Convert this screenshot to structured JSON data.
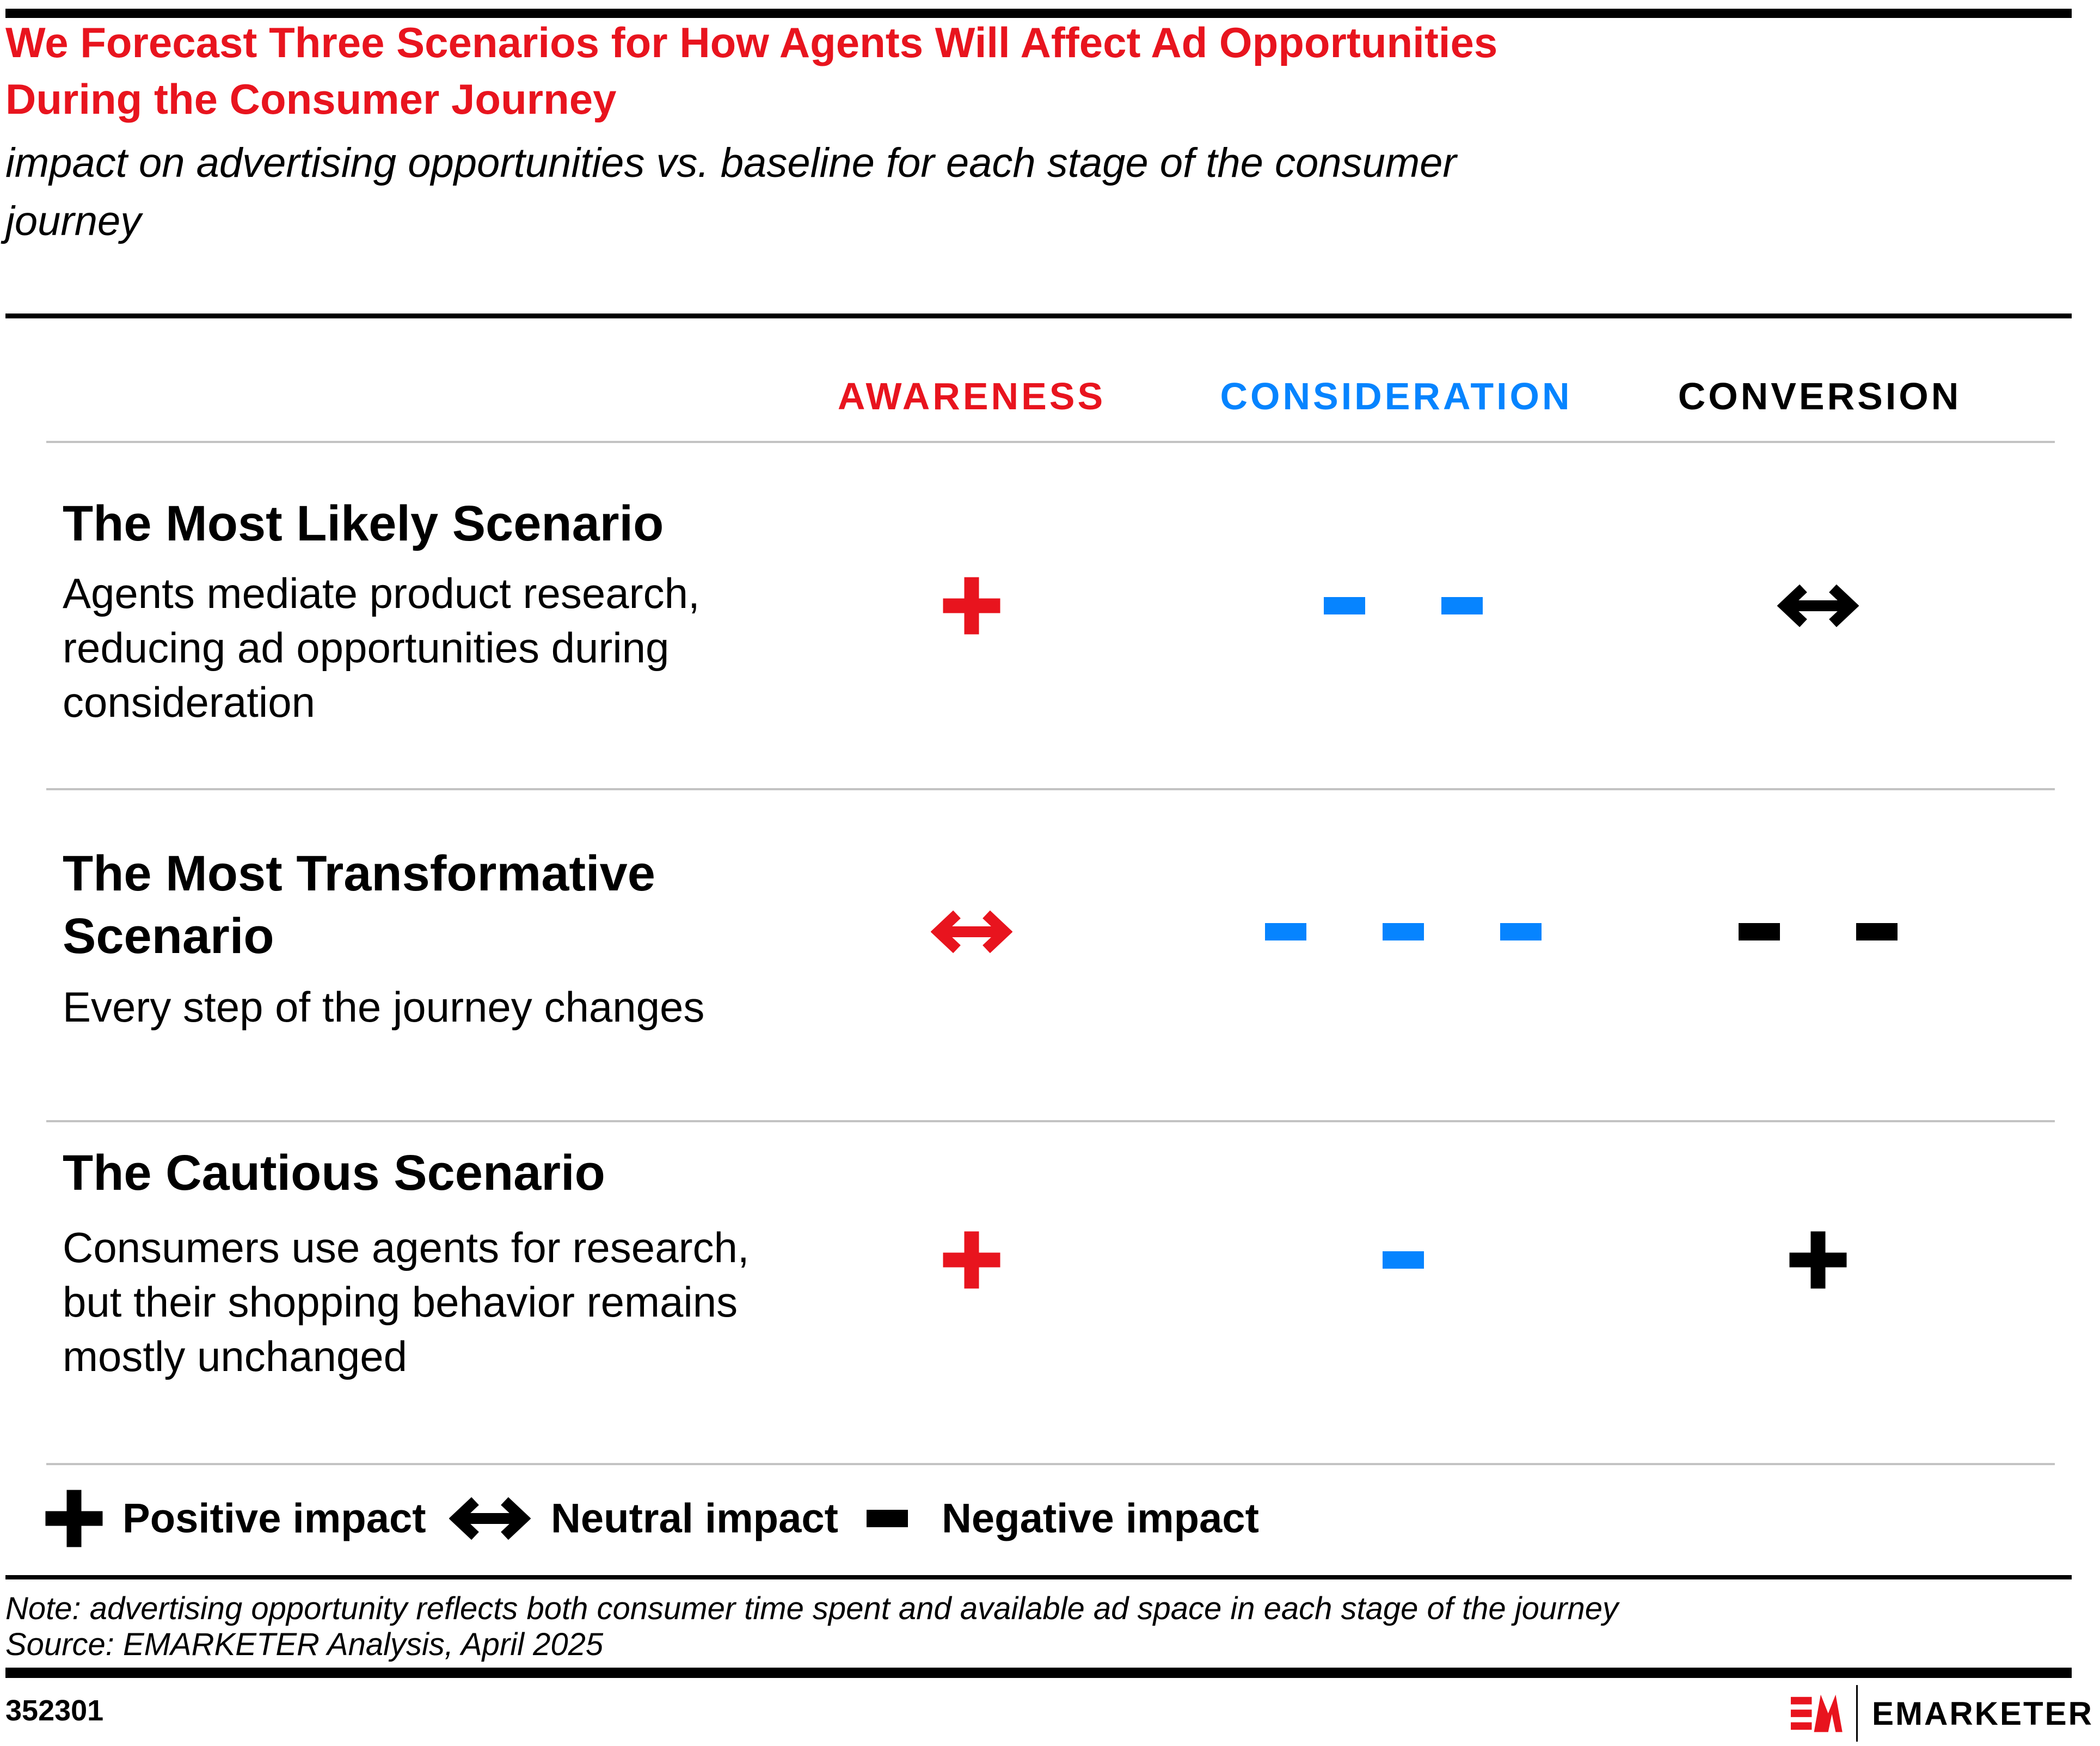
{
  "colors": {
    "red": "#E8141E",
    "blue": "#0684FF",
    "black": "#000000",
    "gray_line": "#C3C3C3"
  },
  "header": {
    "title_lines": [
      "We Forecast Three Scenarios for How Agents Will Affect Ad Opportunities",
      "During the Consumer Journey"
    ],
    "subtitle_lines": [
      "impact on advertising opportunities vs. baseline for each stage of the consumer",
      "journey"
    ]
  },
  "columns": [
    {
      "label": "AWARENESS",
      "color": "#E8141E"
    },
    {
      "label": "CONSIDERATION",
      "color": "#0684FF"
    },
    {
      "label": "CONVERSION",
      "color": "#000000"
    }
  ],
  "rows": [
    {
      "heading_lines": [
        "The Most Likely Scenario"
      ],
      "description_lines": [
        "Agents mediate product research,",
        "reducing ad opportunities during",
        "consideration"
      ],
      "cells": {
        "awareness": {
          "symbols": [
            "plus"
          ],
          "color": "red"
        },
        "consideration": {
          "symbols": [
            "minus",
            "minus"
          ],
          "color": "blue"
        },
        "conversion": {
          "symbols": [
            "arrow"
          ],
          "color": "black"
        }
      }
    },
    {
      "heading_lines": [
        "The Most Transformative",
        "Scenario"
      ],
      "description_lines": [
        "Every step of the journey changes"
      ],
      "cells": {
        "awareness": {
          "symbols": [
            "arrow"
          ],
          "color": "red"
        },
        "consideration": {
          "symbols": [
            "minus",
            "minus",
            "minus"
          ],
          "color": "blue"
        },
        "conversion": {
          "symbols": [
            "minus",
            "minus"
          ],
          "color": "black"
        }
      }
    },
    {
      "heading_lines": [
        "The Cautious Scenario"
      ],
      "description_lines": [
        "Consumers use agents for research,",
        "but their shopping behavior remains",
        "mostly unchanged"
      ],
      "cells": {
        "awareness": {
          "symbols": [
            "plus"
          ],
          "color": "red"
        },
        "consideration": {
          "symbols": [
            "minus"
          ],
          "color": "blue"
        },
        "conversion": {
          "symbols": [
            "plus"
          ],
          "color": "black"
        }
      }
    }
  ],
  "legend": {
    "items": [
      {
        "label": "Positive impact",
        "icon": {
          "symbols": [
            "plus"
          ],
          "color": "black"
        }
      },
      {
        "label": "Neutral impact",
        "icon": {
          "symbols": [
            "arrow"
          ],
          "color": "black"
        }
      },
      {
        "label": "Negative impact",
        "icon": {
          "symbols": [
            "minus"
          ],
          "color": "black"
        }
      }
    ]
  },
  "footnotes": {
    "note": "Note: advertising opportunity reflects both consumer time spent and available ad space in each stage of the journey",
    "source": "Source: EMARKETER Analysis, April 2025"
  },
  "footer": {
    "chart_id": "352301",
    "logo_text": "EMARKETER"
  },
  "chart_data": {
    "type": "table",
    "title": "We Forecast Three Scenarios for How Agents Will Affect Ad Opportunities During the Consumer Journey",
    "subtitle": "impact on advertising opportunities vs. baseline for each stage of the consumer journey",
    "columns": [
      "AWARENESS",
      "CONSIDERATION",
      "CONVERSION"
    ],
    "rows": [
      {
        "scenario": "The Most Likely Scenario",
        "description": "Agents mediate product research, reducing ad opportunities during consideration",
        "awareness": "positive (+)",
        "consideration": "negative (2 minuses)",
        "conversion": "neutral (double arrow)"
      },
      {
        "scenario": "The Most Transformative Scenario",
        "description": "Every step of the journey changes",
        "awareness": "neutral (double arrow)",
        "consideration": "negative (3 minuses)",
        "conversion": "negative (2 minuses)"
      },
      {
        "scenario": "The Cautious Scenario",
        "description": "Consumers use agents for research, but their shopping behavior remains mostly unchanged",
        "awareness": "positive (+)",
        "consideration": "negative (1 minus)",
        "conversion": "positive (+)"
      }
    ],
    "legend": {
      "plus": "Positive impact",
      "arrow": "Neutral impact",
      "minus": "Negative impact"
    },
    "stage_colors": {
      "AWARENESS": "#E8141E",
      "CONSIDERATION": "#0684FF",
      "CONVERSION": "#000000"
    }
  }
}
